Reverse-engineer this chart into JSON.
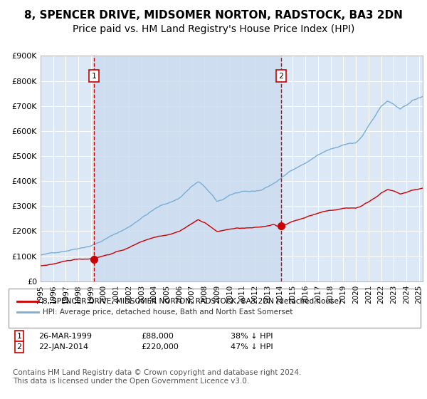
{
  "title": "8, SPENCER DRIVE, MIDSOMER NORTON, RADSTOCK, BA3 2DN",
  "subtitle": "Price paid vs. HM Land Registry's House Price Index (HPI)",
  "title_fontsize": 11,
  "subtitle_fontsize": 10,
  "background_color": "#ffffff",
  "plot_bg_color": "#dce8f5",
  "grid_color": "#ffffff",
  "hpi_color": "#7aadd4",
  "price_color": "#cc0000",
  "marker_color": "#cc0000",
  "vline_color": "#cc0000",
  "ylim": [
    0,
    900000
  ],
  "ytick_labels": [
    "£0",
    "£100K",
    "£200K",
    "£300K",
    "£400K",
    "£500K",
    "£600K",
    "£700K",
    "£800K",
    "£900K"
  ],
  "ytick_values": [
    0,
    100000,
    200000,
    300000,
    400000,
    500000,
    600000,
    700000,
    800000,
    900000
  ],
  "xtick_years": [
    1995,
    1996,
    1997,
    1998,
    1999,
    2000,
    2001,
    2002,
    2003,
    2004,
    2005,
    2006,
    2007,
    2008,
    2009,
    2010,
    2011,
    2012,
    2013,
    2014,
    2015,
    2016,
    2017,
    2018,
    2019,
    2020,
    2021,
    2022,
    2023,
    2024,
    2025
  ],
  "sale1_year": 1999.23,
  "sale1_price": 88000,
  "sale1_label": "1",
  "sale1_date": "26-MAR-1999",
  "sale1_pct": "38% ↓ HPI",
  "sale2_year": 2014.07,
  "sale2_price": 220000,
  "sale2_label": "2",
  "sale2_date": "22-JAN-2014",
  "sale2_pct": "47% ↓ HPI",
  "legend_label1": "8, SPENCER DRIVE, MIDSOMER NORTON, RADSTOCK, BA3 2DN (detached house)",
  "legend_label2": "HPI: Average price, detached house, Bath and North East Somerset",
  "footer": "Contains HM Land Registry data © Crown copyright and database right 2024.\nThis data is licensed under the Open Government Licence v3.0.",
  "footer_fontsize": 7.5,
  "hpi_waypoints_x": [
    1995.0,
    1995.5,
    1996.0,
    1996.5,
    1997.0,
    1997.5,
    1998.0,
    1998.5,
    1999.0,
    1999.5,
    2000.0,
    2000.5,
    2001.0,
    2001.5,
    2002.0,
    2002.5,
    2003.0,
    2003.5,
    2004.0,
    2004.5,
    2005.0,
    2005.5,
    2006.0,
    2006.5,
    2007.0,
    2007.5,
    2008.0,
    2008.5,
    2009.0,
    2009.5,
    2010.0,
    2010.5,
    2011.0,
    2011.5,
    2012.0,
    2012.5,
    2013.0,
    2013.5,
    2014.0,
    2014.5,
    2015.0,
    2015.5,
    2016.0,
    2016.5,
    2017.0,
    2017.5,
    2018.0,
    2018.5,
    2019.0,
    2019.5,
    2020.0,
    2020.5,
    2021.0,
    2021.5,
    2022.0,
    2022.5,
    2023.0,
    2023.5,
    2024.0,
    2024.5,
    2025.3
  ],
  "hpi_waypoints_y": [
    105000,
    108000,
    113000,
    118000,
    124000,
    130000,
    137000,
    143000,
    150000,
    160000,
    172000,
    185000,
    198000,
    210000,
    223000,
    242000,
    262000,
    278000,
    295000,
    308000,
    318000,
    328000,
    340000,
    365000,
    388000,
    405000,
    385000,
    355000,
    322000,
    332000,
    350000,
    358000,
    360000,
    358000,
    360000,
    365000,
    378000,
    392000,
    410000,
    428000,
    448000,
    462000,
    475000,
    490000,
    508000,
    520000,
    530000,
    535000,
    542000,
    548000,
    548000,
    575000,
    618000,
    658000,
    698000,
    718000,
    705000,
    682000,
    698000,
    718000,
    732000
  ],
  "price_waypoints_x": [
    1995.0,
    1995.5,
    1996.0,
    1996.5,
    1997.0,
    1997.5,
    1998.0,
    1998.5,
    1999.0,
    1999.5,
    2000.0,
    2000.5,
    2001.0,
    2001.5,
    2002.0,
    2002.5,
    2003.0,
    2003.5,
    2004.0,
    2004.5,
    2005.0,
    2005.5,
    2006.0,
    2006.5,
    2007.0,
    2007.5,
    2008.0,
    2008.5,
    2009.0,
    2009.5,
    2010.0,
    2010.5,
    2011.0,
    2011.5,
    2012.0,
    2012.5,
    2013.0,
    2013.5,
    2014.0,
    2014.5,
    2015.0,
    2015.5,
    2016.0,
    2016.5,
    2017.0,
    2017.5,
    2018.0,
    2018.5,
    2019.0,
    2019.5,
    2020.0,
    2020.5,
    2021.0,
    2021.5,
    2022.0,
    2022.5,
    2023.0,
    2023.5,
    2024.0,
    2024.5,
    2025.3
  ],
  "price_waypoints_y": [
    62000,
    65000,
    70000,
    74000,
    78000,
    83000,
    87000,
    88000,
    90000,
    96000,
    103000,
    110000,
    118000,
    126000,
    135000,
    148000,
    160000,
    170000,
    178000,
    185000,
    190000,
    198000,
    207000,
    222000,
    238000,
    252000,
    242000,
    225000,
    205000,
    210000,
    215000,
    218000,
    218000,
    218000,
    218000,
    220000,
    225000,
    232000,
    222000,
    232000,
    245000,
    252000,
    262000,
    270000,
    278000,
    285000,
    290000,
    293000,
    298000,
    300000,
    300000,
    310000,
    325000,
    342000,
    362000,
    375000,
    368000,
    355000,
    362000,
    370000,
    378000
  ]
}
